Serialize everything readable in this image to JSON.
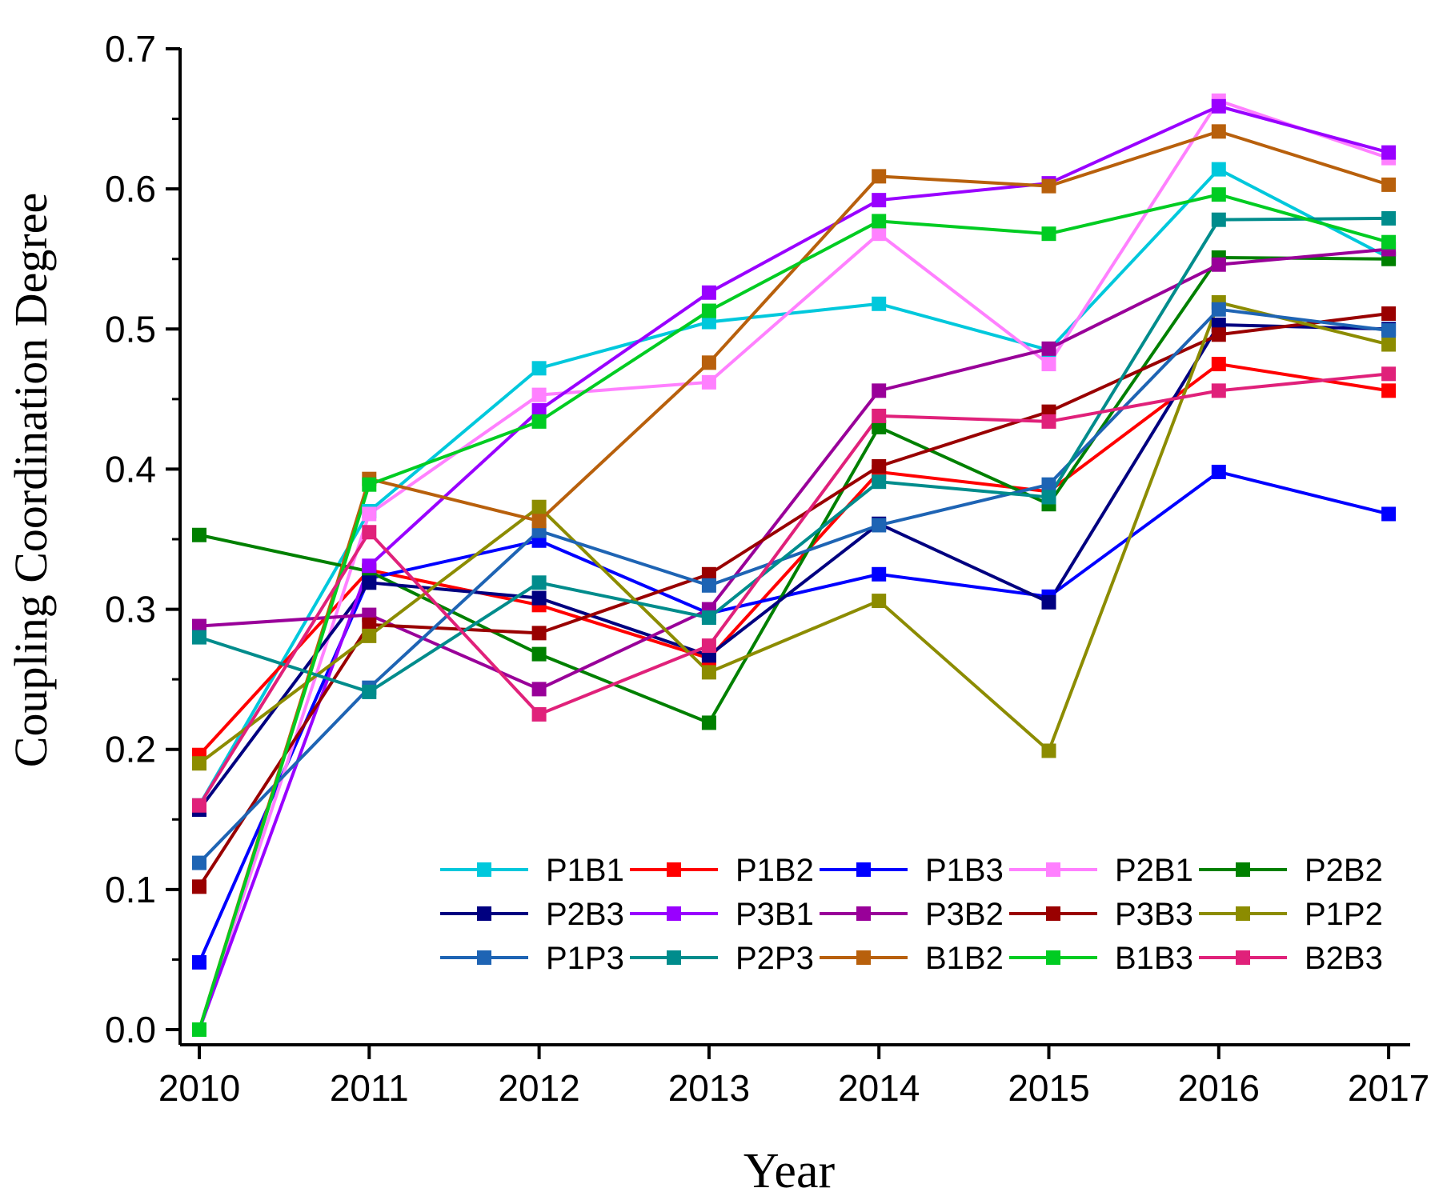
{
  "chart_data": {
    "type": "line",
    "title": "",
    "xlabel": "Year",
    "ylabel": "Coupling Coordination Degree",
    "categories": [
      "2010",
      "2011",
      "2012",
      "2013",
      "2014",
      "2015",
      "2016",
      "2017"
    ],
    "ylim": [
      0.0,
      0.7
    ],
    "yticks": [
      "0.0",
      "0.1",
      "0.2",
      "0.3",
      "0.4",
      "0.5",
      "0.6",
      "0.7"
    ],
    "grid": false,
    "legend_position": "bottom-right",
    "series": [
      {
        "name": "P1B1",
        "color": "#00C8DC",
        "values": [
          0.16,
          0.37,
          0.472,
          0.505,
          0.518,
          0.485,
          0.614,
          0.551
        ]
      },
      {
        "name": "P1B2",
        "color": "#FF0000",
        "values": [
          0.196,
          0.328,
          0.303,
          0.265,
          0.398,
          0.384,
          0.475,
          0.456
        ]
      },
      {
        "name": "P1B3",
        "color": "#0000FF",
        "values": [
          0.048,
          0.322,
          0.349,
          0.297,
          0.325,
          0.309,
          0.398,
          0.368
        ]
      },
      {
        "name": "P2B1",
        "color": "#FF80FF",
        "values": [
          0.0,
          0.368,
          0.453,
          0.462,
          0.568,
          0.475,
          0.663,
          0.622
        ]
      },
      {
        "name": "P2B2",
        "color": "#008000",
        "values": [
          0.353,
          0.327,
          0.268,
          0.219,
          0.43,
          0.375,
          0.551,
          0.55
        ]
      },
      {
        "name": "P2B3",
        "color": "#000080",
        "values": [
          0.157,
          0.319,
          0.308,
          0.267,
          0.361,
          0.305,
          0.503,
          0.5
        ]
      },
      {
        "name": "P3B1",
        "color": "#9900FF",
        "values": [
          0.0,
          0.331,
          0.442,
          0.526,
          0.592,
          0.604,
          0.659,
          0.626
        ]
      },
      {
        "name": "P3B2",
        "color": "#990099",
        "values": [
          0.288,
          0.296,
          0.243,
          0.3,
          0.456,
          0.486,
          0.546,
          0.557
        ]
      },
      {
        "name": "P3B3",
        "color": "#990000",
        "values": [
          0.102,
          0.289,
          0.283,
          0.325,
          0.402,
          0.441,
          0.496,
          0.511
        ]
      },
      {
        "name": "P1P2",
        "color": "#8C8C00",
        "values": [
          0.19,
          0.281,
          0.373,
          0.255,
          0.306,
          0.199,
          0.519,
          0.489
        ]
      },
      {
        "name": "P1P3",
        "color": "#1E64B4",
        "values": [
          0.119,
          0.244,
          0.356,
          0.317,
          0.36,
          0.389,
          0.514,
          0.499
        ]
      },
      {
        "name": "P2P3",
        "color": "#008C8C",
        "values": [
          0.28,
          0.241,
          0.319,
          0.294,
          0.391,
          0.38,
          0.578,
          0.579
        ]
      },
      {
        "name": "B1B2",
        "color": "#B8600C",
        "values": [
          0.0,
          0.393,
          0.363,
          0.476,
          0.609,
          0.602,
          0.641,
          0.603
        ]
      },
      {
        "name": "B1B3",
        "color": "#00CC22",
        "values": [
          0.0,
          0.389,
          0.434,
          0.513,
          0.577,
          0.568,
          0.596,
          0.562
        ]
      },
      {
        "name": "B2B3",
        "color": "#E0217A",
        "values": [
          0.16,
          0.355,
          0.225,
          0.274,
          0.438,
          0.434,
          0.456,
          0.468
        ]
      }
    ]
  }
}
